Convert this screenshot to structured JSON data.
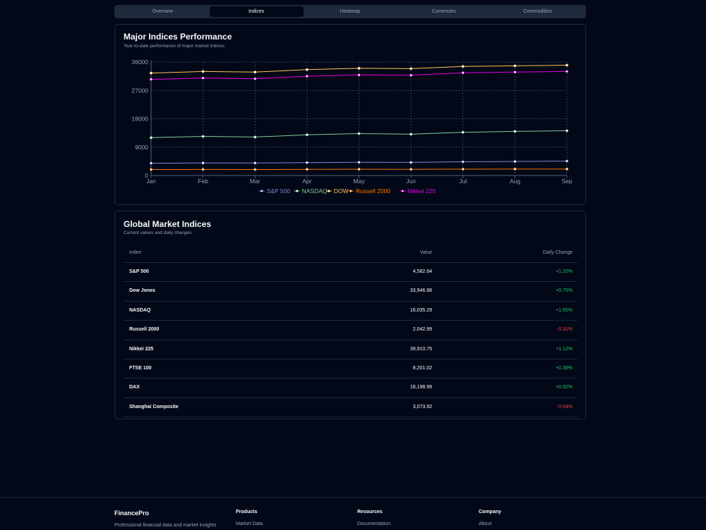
{
  "tabs": [
    "Overview",
    "Indices",
    "Heatmap",
    "Currencies",
    "Commodities"
  ],
  "active_tab": "Indices",
  "chart_card": {
    "title": "Major Indices Performance",
    "subtitle": "Year-to-date performance of major market indices"
  },
  "chart_data": {
    "type": "line",
    "categories": [
      "Jan",
      "Feb",
      "Mar",
      "Apr",
      "May",
      "Jun",
      "Jul",
      "Aug",
      "Sep"
    ],
    "yticks": [
      0,
      9000,
      18000,
      27000,
      36000
    ],
    "ylim": [
      0,
      36000
    ],
    "grid": true,
    "legend_position": "bottom",
    "series": [
      {
        "name": "S&P 500",
        "color": "#8884d8",
        "values": [
          3900,
          3980,
          3950,
          4100,
          4200,
          4150,
          4350,
          4450,
          4580
        ]
      },
      {
        "name": "NASDAQ",
        "color": "#82ca9d",
        "values": [
          12000,
          12400,
          12200,
          12900,
          13300,
          13100,
          13700,
          14000,
          14200
        ]
      },
      {
        "name": "DOW",
        "color": "#ffc658",
        "values": [
          32500,
          33000,
          32800,
          33600,
          34000,
          33900,
          34600,
          34800,
          35000
        ]
      },
      {
        "name": "Russell 2000",
        "color": "#ff7300",
        "values": [
          1900,
          1920,
          1890,
          1950,
          1980,
          1960,
          2010,
          2030,
          2040
        ]
      },
      {
        "name": "Nikkei 225",
        "color": "#e600e6",
        "values": [
          30500,
          30900,
          30700,
          31500,
          31900,
          31800,
          32600,
          32800,
          33000
        ]
      }
    ]
  },
  "table_card": {
    "title": "Global Market Indices",
    "subtitle": "Current values and daily changes",
    "headers": {
      "index": "Index",
      "value": "Value",
      "change": "Daily Change"
    },
    "rows": [
      {
        "index": "S&P 500",
        "value": "4,582.64",
        "change": "+1.20%",
        "positive": true
      },
      {
        "index": "Dow Jones",
        "value": "33,946.98",
        "change": "+0.76%",
        "positive": true
      },
      {
        "index": "NASDAQ",
        "value": "16,035.29",
        "change": "+1.65%",
        "positive": true
      },
      {
        "index": "Russell 2000",
        "value": "2,042.99",
        "change": "-0.31%",
        "positive": false
      },
      {
        "index": "Nikkei 225",
        "value": "39,910.75",
        "change": "+1.12%",
        "positive": true
      },
      {
        "index": "FTSE 100",
        "value": "8,201.02",
        "change": "+0.38%",
        "positive": true
      },
      {
        "index": "DAX",
        "value": "18,198.99",
        "change": "+0.92%",
        "positive": true
      },
      {
        "index": "Shanghai Composite",
        "value": "3,073.92",
        "change": "-0.54%",
        "positive": false
      }
    ]
  },
  "footer": {
    "brand": "FinancePro",
    "tagline": "Professional financial data and market insights",
    "products": {
      "heading": "Products",
      "link": "Market Data"
    },
    "resources": {
      "heading": "Resources",
      "link": "Documentation"
    },
    "company": {
      "heading": "Company",
      "link": "About"
    }
  }
}
